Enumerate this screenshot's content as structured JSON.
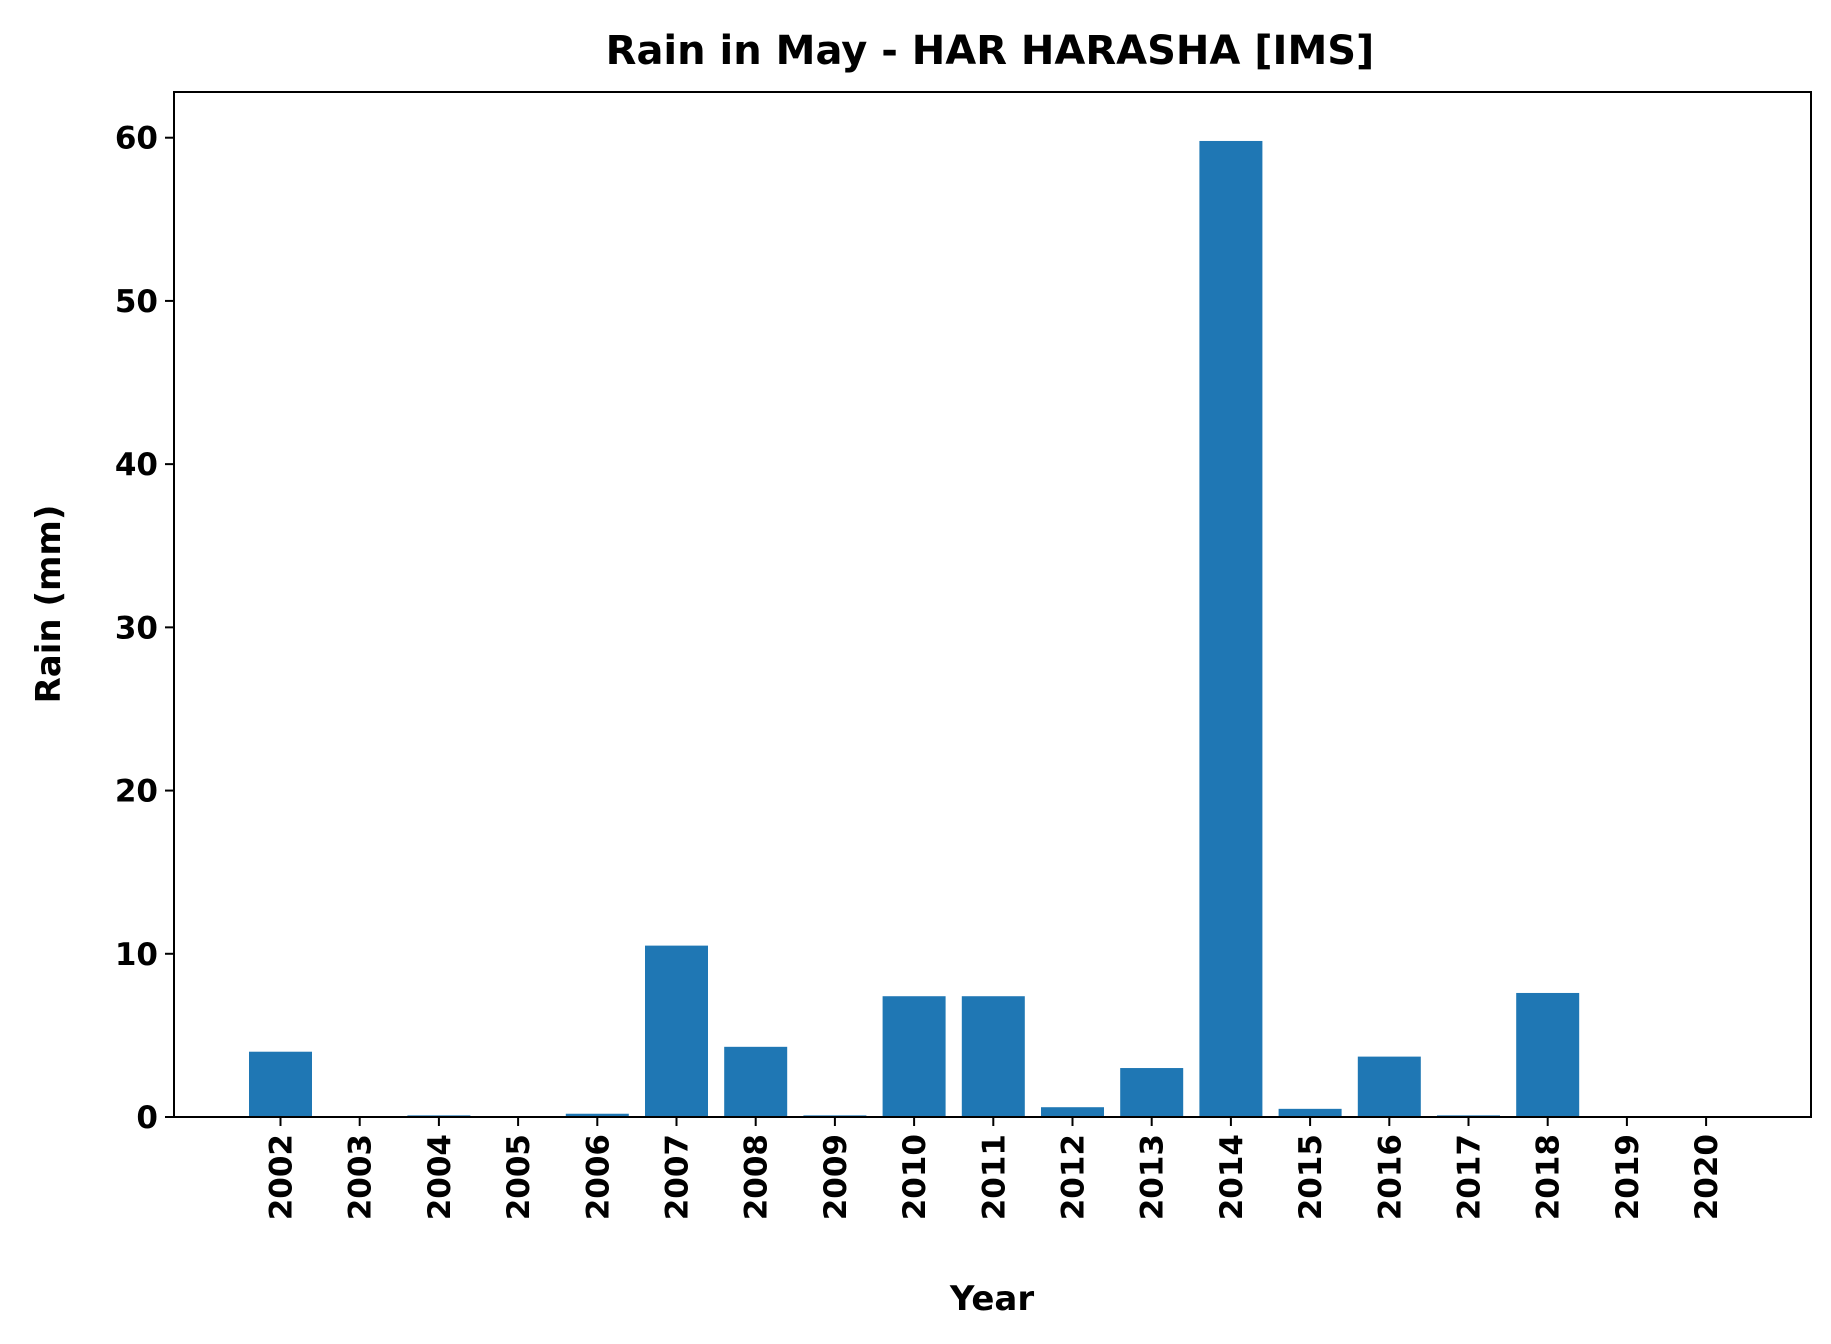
{
  "chart_data": {
    "type": "bar",
    "title": "Rain in May - HAR HARASHA [IMS]",
    "xlabel": "Year",
    "ylabel": "Rain (mm)",
    "categories": [
      "2002",
      "2003",
      "2004",
      "2005",
      "2006",
      "2007",
      "2008",
      "2009",
      "2010",
      "2011",
      "2012",
      "2013",
      "2014",
      "2015",
      "2016",
      "2017",
      "2018",
      "2019",
      "2020"
    ],
    "values": [
      4.0,
      0.0,
      0.1,
      0.0,
      0.2,
      10.5,
      4.3,
      0.1,
      7.4,
      7.4,
      0.6,
      3.0,
      59.8,
      0.5,
      3.7,
      0.1,
      7.6,
      0.0,
      0.0
    ],
    "yticks": [
      0,
      10,
      20,
      30,
      40,
      50,
      60
    ],
    "ylim": [
      0,
      62.8
    ],
    "bar_color": "#1f77b4",
    "grid": false,
    "legend": false
  }
}
